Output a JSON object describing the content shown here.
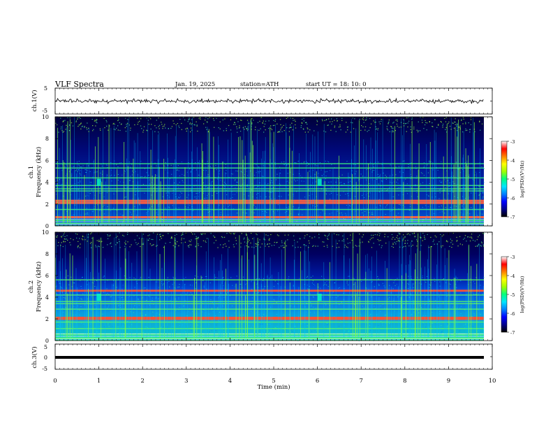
{
  "header": {
    "title": "VLF  Spectra",
    "date": "Jan. 19, 2025",
    "station": "station=ATH",
    "start": "start  UT  =   18: 10: 0"
  },
  "colors": {
    "spectrogram_scale": [
      "#000000",
      "#00008b",
      "#0000ff",
      "#0080ff",
      "#00e5ff",
      "#00ff80",
      "#a0ff00",
      "#ffff00",
      "#ff8000",
      "#ff0000",
      "#ffffff"
    ]
  },
  "chart_data": [
    {
      "type": "line",
      "panel": "ch1-waveform",
      "ylabel": "ch.1(V)",
      "ylim": [
        -5,
        5
      ],
      "yticks": [
        5,
        -5
      ],
      "xlim": [
        0,
        10
      ],
      "series": [
        {
          "values_range": [
            -1,
            1
          ]
        }
      ]
    },
    {
      "type": "heatmap",
      "panel": "ch1-spectrogram",
      "ylabel": "ch.1\nFrequency (kHz)",
      "ylabel_lines": [
        "ch.1",
        "Frequency  (kHz)"
      ],
      "ylim": [
        0,
        10
      ],
      "yticks": [
        0,
        2,
        4,
        6,
        8,
        10
      ],
      "xlim": [
        0,
        10
      ],
      "colorbar": {
        "label": "log(PSD)(V²/Hz)",
        "range": [
          -7,
          -3
        ],
        "ticks": [
          "-3",
          "-4",
          "-5",
          "-6",
          "-7"
        ]
      },
      "bands_khz": [
        0.2,
        0.5,
        0.8,
        1.5,
        2.1,
        2.3,
        3.2,
        3.4,
        3.7,
        4.4,
        5.3,
        5.7
      ],
      "bright_bands_khz": [
        0.8,
        2.1,
        2.3
      ],
      "features": [
        {
          "t_min": 1.0,
          "f_khz": 4.0
        },
        {
          "t_min": 6.05,
          "f_khz": 4.0
        }
      ]
    },
    {
      "type": "heatmap",
      "panel": "ch2-spectrogram",
      "ylabel_lines": [
        "ch.2",
        "Frequency  (kHz)"
      ],
      "ylim": [
        0,
        10
      ],
      "yticks": [
        0,
        2,
        4,
        6,
        8,
        10
      ],
      "xlim": [
        0,
        10
      ],
      "colorbar": {
        "label": "log(PSD)(V²/Hz)",
        "range": [
          -7,
          -3
        ],
        "ticks": [
          "-3",
          "-4",
          "-5",
          "-6",
          "-7"
        ]
      },
      "bands_khz": [
        0.2,
        0.6,
        1.1,
        1.7,
        2.0,
        2.1,
        2.9,
        3.4,
        3.6,
        4.2,
        4.6,
        5.6
      ],
      "bright_bands_khz": [
        2.0,
        2.1,
        4.6
      ],
      "features": [
        {
          "t_min": 1.0,
          "f_khz": 4.0
        },
        {
          "t_min": 6.05,
          "f_khz": 4.0
        }
      ]
    },
    {
      "type": "line",
      "panel": "ch3-waveform",
      "ylabel": "ch.3(V)",
      "ylim": [
        -5,
        5
      ],
      "yticks": [
        5,
        0,
        -5
      ],
      "xlim": [
        0,
        10
      ],
      "series": [
        {
          "values_range": [
            -0.3,
            -0.3
          ]
        }
      ]
    }
  ],
  "xaxis": {
    "label": "Time  (min)",
    "ticks": [
      "0",
      "1",
      "2",
      "3",
      "4",
      "5",
      "6",
      "7",
      "8",
      "9",
      "10"
    ]
  }
}
